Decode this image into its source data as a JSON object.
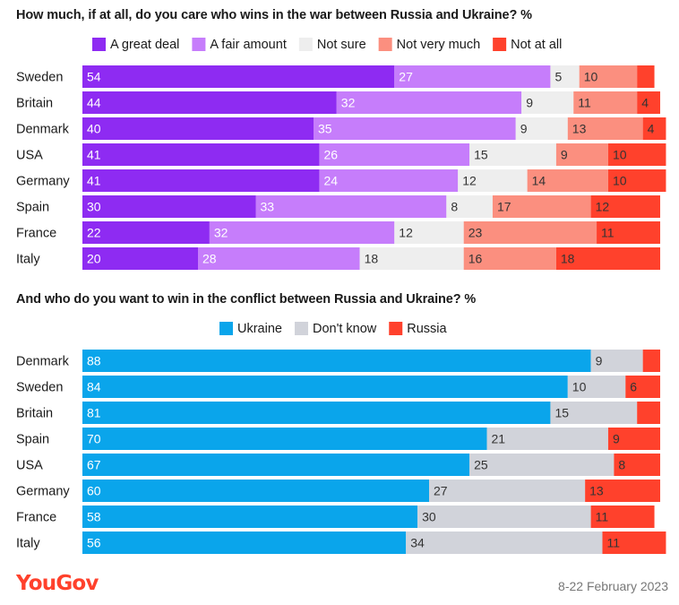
{
  "chart_data": [
    {
      "type": "bar",
      "orientation": "horizontal",
      "stacked": true,
      "title": "How much, if at all, do you care who wins in the war between Russia and Ukraine? %",
      "categories": [
        "Sweden",
        "Britain",
        "Denmark",
        "USA",
        "Germany",
        "Spain",
        "France",
        "Italy"
      ],
      "series": [
        {
          "name": "A great deal",
          "color": "#8e2bf2",
          "label_color": "#ffffff",
          "values": [
            54,
            44,
            40,
            41,
            41,
            30,
            22,
            20
          ]
        },
        {
          "name": "A fair amount",
          "color": "#c67dfb",
          "label_color": "#ffffff",
          "values": [
            27,
            32,
            35,
            26,
            24,
            33,
            32,
            28
          ]
        },
        {
          "name": "Not sure",
          "color": "#eeeeee",
          "label_color": "#333333",
          "values": [
            5,
            9,
            9,
            15,
            12,
            8,
            12,
            18
          ]
        },
        {
          "name": "Not very much",
          "color": "#fb8f7f",
          "label_color": "#333333",
          "values": [
            10,
            11,
            13,
            9,
            14,
            17,
            23,
            16
          ]
        },
        {
          "name": "Not at all",
          "color": "#ff412c",
          "label_color": "#333333",
          "values": [
            3,
            4,
            4,
            10,
            10,
            12,
            11,
            18
          ]
        }
      ],
      "hidden_labels": [
        [
          0,
          4
        ]
      ]
    },
    {
      "type": "bar",
      "orientation": "horizontal",
      "stacked": true,
      "title": "And who do you want to win in the conflict between Russia and Ukraine? %",
      "categories": [
        "Denmark",
        "Sweden",
        "Britain",
        "Spain",
        "USA",
        "Germany",
        "France",
        "Italy"
      ],
      "series": [
        {
          "name": "Ukraine",
          "color": "#0aa5eb",
          "label_color": "#ffffff",
          "values": [
            88,
            84,
            81,
            70,
            67,
            60,
            58,
            56
          ]
        },
        {
          "name": "Don't know",
          "color": "#d1d3da",
          "label_color": "#333333",
          "values": [
            9,
            10,
            15,
            21,
            25,
            27,
            30,
            34
          ]
        },
        {
          "name": "Russia",
          "color": "#ff412c",
          "label_color": "#333333",
          "values": [
            3,
            6,
            4,
            9,
            8,
            13,
            11,
            11
          ]
        }
      ],
      "hidden_labels": [
        [
          0,
          2
        ],
        [
          2,
          2
        ]
      ]
    }
  ],
  "footer": {
    "brand": "YouGov",
    "date": "8-22 February 2023"
  }
}
